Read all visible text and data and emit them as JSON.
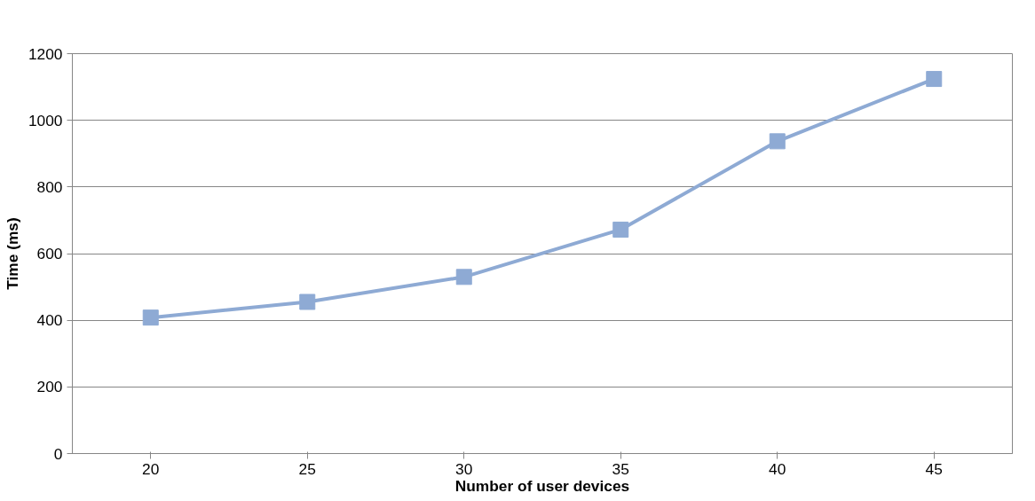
{
  "chart_data": {
    "type": "line",
    "xlabel": "Number of user devices",
    "ylabel": "Time (ms)",
    "categories": [
      "20",
      "25",
      "30",
      "35",
      "40",
      "45"
    ],
    "series": [
      {
        "color": "#8eaad4",
        "values": [
          408,
          455,
          530,
          672,
          937,
          1124
        ]
      }
    ],
    "ylim": [
      0,
      1200
    ],
    "yticks": [
      0,
      200,
      400,
      600,
      800,
      1000,
      1200
    ],
    "grid": "y",
    "marker": "square",
    "line_style": "solid"
  }
}
